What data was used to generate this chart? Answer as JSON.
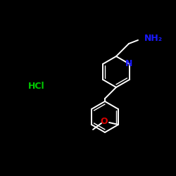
{
  "background_color": "#000000",
  "bond_color": "#ffffff",
  "atom_colors": {
    "N": "#1a1aff",
    "O": "#dd0000",
    "HCl": "#00cc00",
    "NH2": "#1a1aff",
    "C": "#ffffff"
  },
  "figsize": [
    2.5,
    2.5
  ],
  "dpi": 100,
  "xlim": [
    0,
    250
  ],
  "ylim": [
    0,
    250
  ]
}
